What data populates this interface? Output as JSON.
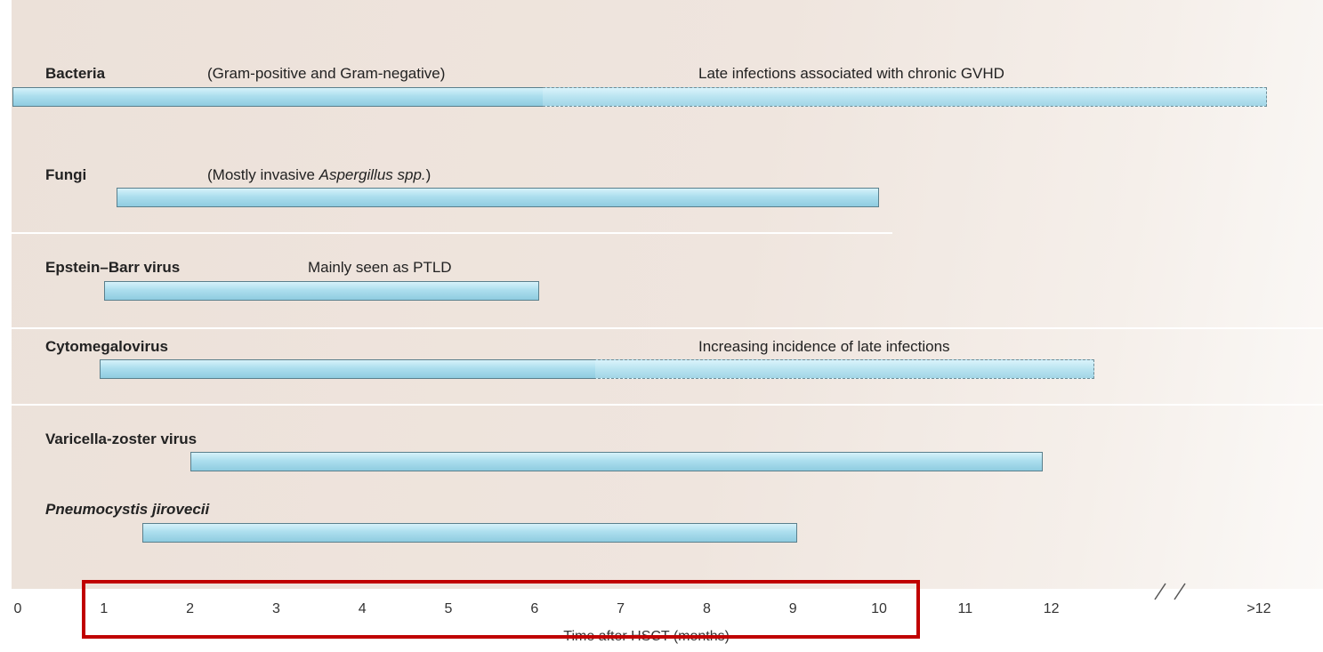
{
  "chart_data": {
    "type": "bar",
    "xlabel": "Time after HSCT (months)",
    "x_ticks": [
      "0",
      "1",
      "2",
      "3",
      "4",
      "5",
      "6",
      "7",
      "8",
      "9",
      "10",
      "11",
      "12",
      ">12"
    ],
    "axis_break": "between 12 and >12",
    "grid": false,
    "series": [
      {
        "name": "Bacteria",
        "note": "(Gram-positive and Gram-negative)",
        "note2": "Late infections associated with chronic GVHD",
        "start": 0,
        "end": 14.5,
        "solid_end": 6.1
      },
      {
        "name": "Fungi",
        "note_pre": "(Mostly invasive ",
        "note_em": "Aspergillus spp.",
        "note_post": ")",
        "start": 1.15,
        "end": 10
      },
      {
        "name": "Epstein–Barr virus",
        "note": "Mainly seen as PTLD",
        "start": 1,
        "end": 6.05
      },
      {
        "name": "Cytomegalovirus",
        "note2": "Increasing incidence of late infections",
        "start": 0.95,
        "end": 12.5,
        "solid_end": 6.7
      },
      {
        "name": "Varicella-zoster virus",
        "start": 2,
        "end": 11.9
      },
      {
        "name": "Pneumocystis jirovecii",
        "start": 1.45,
        "end": 9.05
      }
    ],
    "highlight": {
      "from": "1",
      "to": "10",
      "color": "#c00000"
    }
  },
  "colors": {
    "bar_fill": "#acdeee",
    "bar_border": "#5a7f8c",
    "background": "#ece1d9",
    "highlight": "#c00000"
  }
}
